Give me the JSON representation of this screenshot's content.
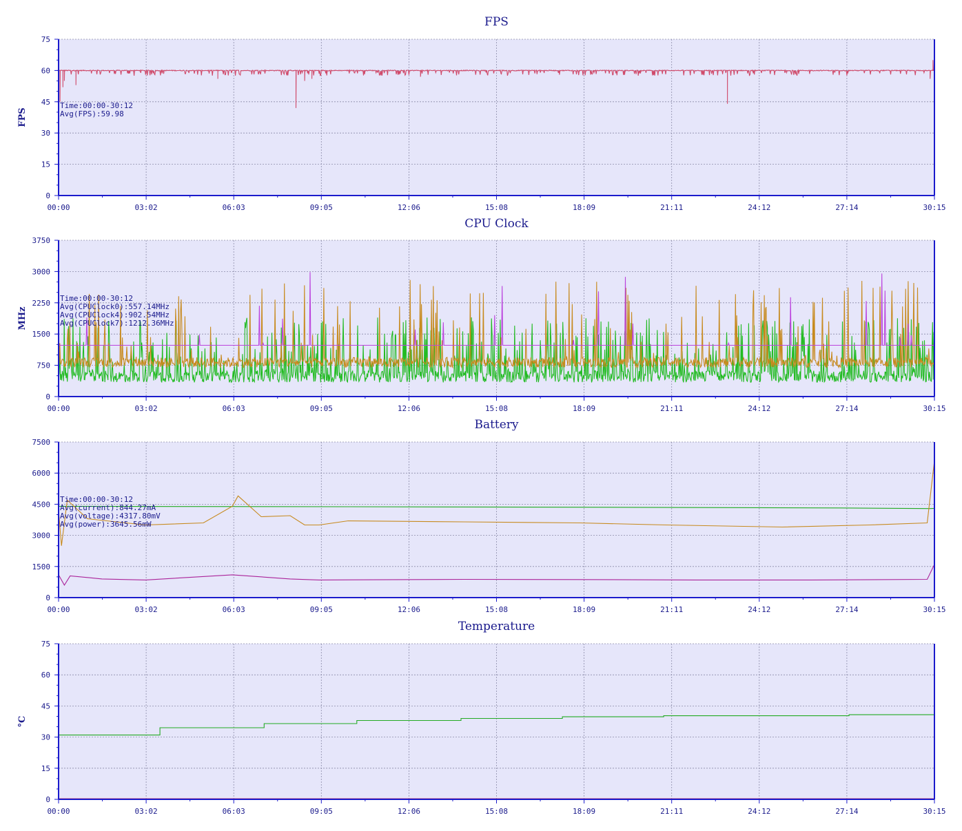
{
  "colors": {
    "plot_bg": "#e6e6fa",
    "axis": "#1a1acc",
    "grid": "#8a8aa8",
    "text": "#1a1a8c"
  },
  "chart_data": [
    {
      "id": "fps",
      "type": "line",
      "title": "FPS",
      "ylabel": "FPS",
      "ylim": [
        0,
        75
      ],
      "yticks": [
        0,
        15,
        30,
        45,
        60,
        75
      ],
      "xlim": [
        0,
        30.25
      ],
      "xticks": [
        "00:00",
        "03:02",
        "06:03",
        "09:05",
        "12:06",
        "15:08",
        "18:09",
        "21:11",
        "24:12",
        "27:14",
        "30:15"
      ],
      "grid": true,
      "annotations": [
        "Time:00:00-30:12",
        "Avg(FPS):59.98"
      ],
      "series": [
        {
          "color": "#d04a6a",
          "base": 60,
          "noise": 0.4,
          "dips": [
            [
              0.05,
              45
            ],
            [
              0.15,
              52
            ],
            [
              0.2,
              55
            ],
            [
              0.6,
              53
            ],
            [
              5.5,
              56
            ],
            [
              8.2,
              42
            ],
            [
              8.5,
              55
            ],
            [
              8.75,
              56
            ],
            [
              12.5,
              57
            ],
            [
              23.1,
              44
            ],
            [
              30.1,
              56
            ]
          ],
          "spikes": [
            [
              30.2,
              65
            ]
          ]
        }
      ]
    },
    {
      "id": "cpu",
      "type": "line",
      "title": "CPU Clock",
      "ylabel": "MHz",
      "ylim": [
        0,
        3750
      ],
      "yticks": [
        0,
        750,
        1500,
        2250,
        3000,
        3750
      ],
      "xlim": [
        0,
        30.25
      ],
      "xticks": [
        "00:00",
        "03:02",
        "06:03",
        "09:05",
        "12:06",
        "15:08",
        "18:09",
        "21:11",
        "24:12",
        "27:14",
        "30:15"
      ],
      "grid": true,
      "annotations": [
        "Time:00:00-30:12",
        "Avg(CPUClock0):557.14MHz",
        "Avg(CPUClock4):902.54MHz",
        "Avg(CPUClock7):1212.36MHz"
      ],
      "series": [
        {
          "color": "#22bb22",
          "base": 480,
          "noise": 140,
          "spikeRate": 0.28,
          "spikeMax": 1900
        },
        {
          "color": "#c78a1e",
          "base": 820,
          "noise": 120,
          "spikeRate": 0.1,
          "spikeMax": 2800
        },
        {
          "color": "#bb44dd",
          "base": 1230,
          "noise": 0,
          "spikeRate": 0.015,
          "spikeMax": 3000
        }
      ]
    },
    {
      "id": "battery",
      "type": "line",
      "title": "Battery",
      "ylabel": "",
      "ylim": [
        0,
        7500
      ],
      "yticks": [
        0,
        1500,
        3000,
        4500,
        6000,
        7500
      ],
      "xlim": [
        0,
        30.25
      ],
      "xticks": [
        "00:00",
        "03:02",
        "06:03",
        "09:05",
        "12:06",
        "15:08",
        "18:09",
        "21:11",
        "24:12",
        "27:14",
        "30:15"
      ],
      "grid": true,
      "annotations": [
        "Time:00:00-30:12",
        "Avg(current):844.27mA",
        "Avg(voltage):4317.80mV",
        "Avg(power):3645.56mW"
      ],
      "series": [
        {
          "color": "#22aa22",
          "points": [
            [
              0,
              4400
            ],
            [
              10,
              4380
            ],
            [
              20,
              4350
            ],
            [
              27,
              4320
            ],
            [
              30.1,
              4290
            ],
            [
              30.25,
              4300
            ]
          ]
        },
        {
          "color": "#c78a1e",
          "points": [
            [
              0,
              4200
            ],
            [
              0.1,
              2500
            ],
            [
              0.3,
              4700
            ],
            [
              1,
              3800
            ],
            [
              3,
              3500
            ],
            [
              5,
              3600
            ],
            [
              6,
              4400
            ],
            [
              6.2,
              4900
            ],
            [
              7,
              3900
            ],
            [
              8,
              3950
            ],
            [
              8.5,
              3500
            ],
            [
              9,
              3500
            ],
            [
              10,
              3700
            ],
            [
              14,
              3650
            ],
            [
              18,
              3600
            ],
            [
              21,
              3500
            ],
            [
              25,
              3400
            ],
            [
              28,
              3500
            ],
            [
              30,
              3600
            ],
            [
              30.25,
              6600
            ]
          ]
        },
        {
          "color": "#aa2299",
          "points": [
            [
              0,
              1100
            ],
            [
              0.2,
              600
            ],
            [
              0.4,
              1050
            ],
            [
              1.5,
              900
            ],
            [
              3,
              850
            ],
            [
              6,
              1100
            ],
            [
              8,
              900
            ],
            [
              9,
              850
            ],
            [
              14,
              880
            ],
            [
              18,
              870
            ],
            [
              22,
              850
            ],
            [
              26,
              850
            ],
            [
              30,
              880
            ],
            [
              30.25,
              1600
            ]
          ]
        }
      ]
    },
    {
      "id": "temp",
      "type": "line",
      "title": "Temperature",
      "ylabel": "°C",
      "ylim": [
        0,
        75
      ],
      "yticks": [
        0,
        15,
        30,
        45,
        60,
        75
      ],
      "xlim": [
        0,
        30.25
      ],
      "xticks": [
        "00:00",
        "03:02",
        "06:03",
        "09:05",
        "12:06",
        "15:08",
        "18:09",
        "21:11",
        "24:12",
        "27:14",
        "30:15"
      ],
      "grid": true,
      "annotations": [],
      "series": [
        {
          "color": "#22aa22",
          "points": [
            [
              0,
              31
            ],
            [
              3.5,
              31
            ],
            [
              3.5,
              34.5
            ],
            [
              7.1,
              34.5
            ],
            [
              7.1,
              36.5
            ],
            [
              10.3,
              36.5
            ],
            [
              10.3,
              38
            ],
            [
              13.9,
              38
            ],
            [
              13.9,
              39
            ],
            [
              17.4,
              39
            ],
            [
              17.4,
              39.8
            ],
            [
              20.9,
              39.8
            ],
            [
              20.9,
              40.3
            ],
            [
              27.3,
              40.3
            ],
            [
              27.3,
              40.8
            ],
            [
              30.25,
              40.8
            ]
          ]
        },
        {
          "color": "#d04a6a",
          "points": [
            [
              0,
              0.3
            ],
            [
              30.25,
              0.3
            ]
          ]
        }
      ]
    }
  ]
}
